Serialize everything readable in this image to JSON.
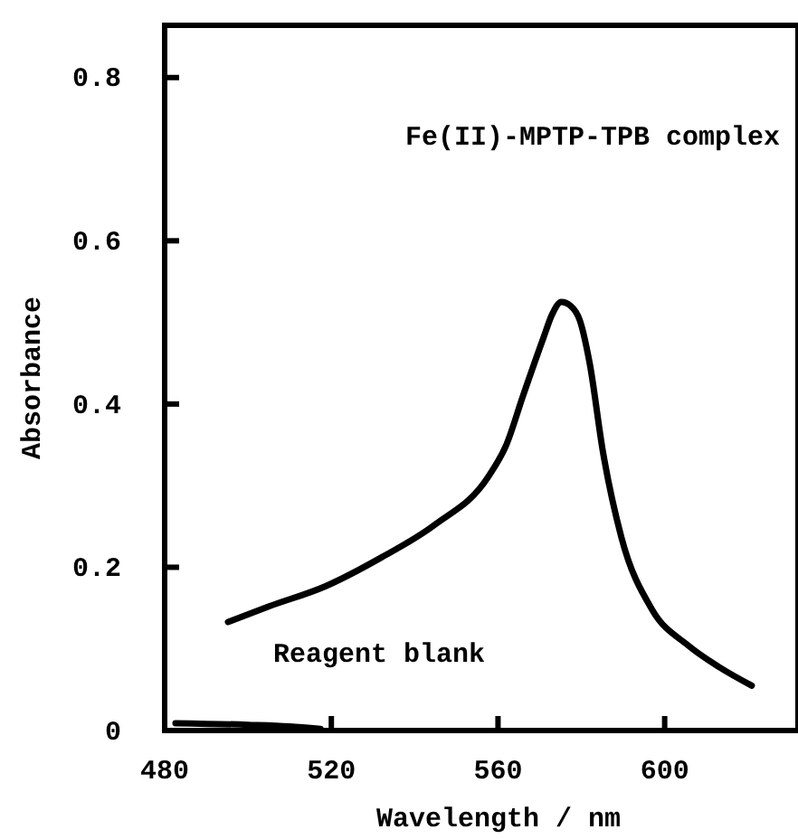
{
  "chart_data": {
    "type": "line",
    "xlabel": "Wavelength / nm",
    "ylabel": "Absorbance",
    "xlim": [
      480,
      632
    ],
    "xticks": [
      480,
      520,
      560,
      600
    ],
    "ylim": [
      0,
      0.864
    ],
    "yticks": [
      0,
      0.2,
      0.4,
      0.6,
      0.8
    ],
    "annotations": [
      "Fe(II)-MPTP-TPB complex",
      "Reagent blank"
    ],
    "grid": false,
    "marker": "none",
    "line_style": "solid",
    "series": [
      {
        "color": "#000000",
        "x": [
          495.2,
          505,
          518.7,
          532,
          544.8,
          557.8,
          562,
          566,
          570.9,
          573,
          575.2,
          577.5,
          579.6,
          582,
          585.2,
          589.6,
          597,
          605.7,
          613,
          620.9
        ],
        "values": [
          0.133,
          0.152,
          0.177,
          0.212,
          0.252,
          0.312,
          0.35,
          0.41,
          0.481,
          0.51,
          0.525,
          0.52,
          0.503,
          0.45,
          0.341,
          0.237,
          0.148,
          0.104,
          0.078,
          0.055
        ]
      },
      {
        "color": "#000000",
        "x": [
          482.6,
          500,
          510,
          517.4
        ],
        "values": [
          0.009,
          0.007,
          0.005,
          0.002
        ]
      }
    ]
  }
}
